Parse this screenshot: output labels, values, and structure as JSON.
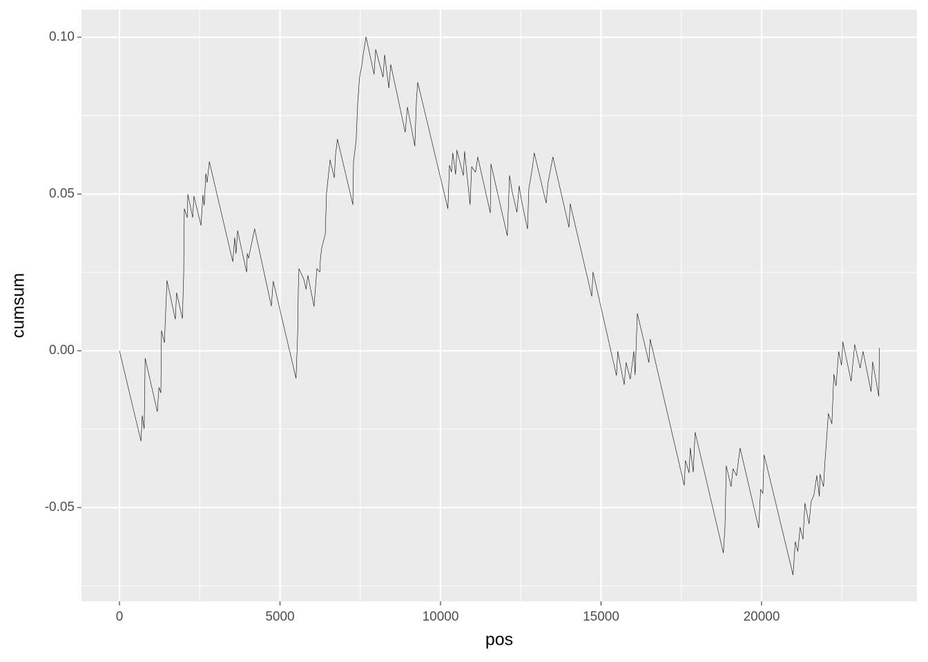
{
  "chart_data": {
    "type": "line",
    "x_label": "pos",
    "y_label": "cumsum",
    "x": [
      0,
      670,
      710,
      770,
      800,
      1180,
      1230,
      1290,
      1310,
      1400,
      1480,
      1740,
      1780,
      1960,
      2000,
      2020,
      2110,
      2130,
      2280,
      2320,
      2540,
      2600,
      2640,
      2690,
      2730,
      2800,
      3530,
      3590,
      3630,
      3680,
      3960,
      3980,
      4020,
      4210,
      4730,
      4790,
      5500,
      5550,
      5570,
      5590,
      5740,
      5810,
      5870,
      6060,
      6150,
      6240,
      6260,
      6300,
      6410,
      6450,
      6560,
      6690,
      6730,
      6790,
      7270,
      7290,
      7370,
      7420,
      7480,
      7550,
      7590,
      7680,
      7930,
      7980,
      8210,
      8260,
      8390,
      8450,
      8900,
      8970,
      9200,
      9250,
      9290,
      10230,
      10280,
      10340,
      10380,
      10470,
      10510,
      10710,
      10750,
      10920,
      10970,
      11090,
      11160,
      11550,
      11570,
      12080,
      12150,
      12230,
      12380,
      12450,
      12530,
      12710,
      12750,
      12860,
      12920,
      13290,
      13350,
      13500,
      14000,
      14040,
      14710,
      14750,
      15480,
      15520,
      15720,
      15780,
      15910,
      16020,
      16060,
      16130,
      16490,
      16530,
      17590,
      17630,
      17740,
      17780,
      17870,
      17930,
      18810,
      18860,
      18900,
      19050,
      19110,
      19220,
      19330,
      19910,
      19970,
      20040,
      20080,
      20980,
      21050,
      21130,
      21200,
      21290,
      21350,
      21480,
      21540,
      21630,
      21720,
      21800,
      21820,
      21930,
      21970,
      22020,
      22080,
      22190,
      22250,
      22320,
      22400,
      22490,
      22530,
      22790,
      22900,
      23070,
      23160,
      23410,
      23460,
      23650,
      23670
    ],
    "values": [
      0,
      -0.0288,
      -0.0207,
      -0.0249,
      -0.0024,
      -0.0194,
      -0.0117,
      -0.0134,
      0.0064,
      0.0026,
      0.0224,
      0.0101,
      0.0185,
      0.0103,
      0.024,
      0.0453,
      0.0425,
      0.0499,
      0.0425,
      0.0493,
      0.04,
      0.0497,
      0.0464,
      0.0565,
      0.0537,
      0.0603,
      0.0284,
      0.0361,
      0.031,
      0.0383,
      0.0251,
      0.031,
      0.0295,
      0.0389,
      0.0143,
      0.0222,
      -0.0088,
      0.0053,
      0.0191,
      0.0262,
      0.0229,
      0.0196,
      0.024,
      0.0141,
      0.0262,
      0.0251,
      0.0295,
      0.0328,
      0.0372,
      0.0504,
      0.0609,
      0.0552,
      0.0625,
      0.0675,
      0.0466,
      0.0603,
      0.0669,
      0.079,
      0.0873,
      0.0911,
      0.0944,
      0.1001,
      0.0882,
      0.0961,
      0.0873,
      0.0944,
      0.0838,
      0.0913,
      0.0697,
      0.0777,
      0.0653,
      0.0801,
      0.0856,
      0.0453,
      0.0592,
      0.057,
      0.0631,
      0.0563,
      0.064,
      0.0559,
      0.0636,
      0.0466,
      0.0587,
      0.057,
      0.0618,
      0.044,
      0.0596,
      0.0367,
      0.0559,
      0.0508,
      0.0442,
      0.0526,
      0.0475,
      0.0389,
      0.0515,
      0.0583,
      0.0631,
      0.0471,
      0.0537,
      0.0618,
      0.0394,
      0.0469,
      0.0174,
      0.0251,
      -0.0079,
      -0.0002,
      -0.0108,
      -0.0037,
      -0.009,
      -0.0002,
      -0.0077,
      0.0119,
      -0.0037,
      0.0037,
      -0.0429,
      -0.035,
      -0.0389,
      -0.031,
      -0.0387,
      -0.026,
      -0.0645,
      -0.0563,
      -0.0367,
      -0.0433,
      -0.0376,
      -0.0398,
      -0.031,
      -0.0565,
      -0.0442,
      -0.0455,
      -0.0332,
      -0.0715,
      -0.0609,
      -0.064,
      -0.0563,
      -0.0601,
      -0.0486,
      -0.0552,
      -0.0482,
      -0.046,
      -0.0398,
      -0.0464,
      -0.0394,
      -0.0433,
      -0.0359,
      -0.0288,
      -0.02,
      -0.0233,
      -0.0075,
      -0.0112,
      -0.0002,
      -0.0046,
      0.0029,
      -0.0097,
      0.002,
      -0.0055,
      -0.0002,
      -0.013,
      -0.0035,
      -0.0145,
      0.0009
    ],
    "color": "#000000",
    "xlim": [
      -1183,
      24839
    ],
    "ylim": [
      -0.0799,
      0.1088
    ],
    "xticks": [
      0,
      5000,
      10000,
      15000,
      20000
    ],
    "yticks": [
      {
        "value": -0.05,
        "label": "-0.05"
      },
      {
        "value": 0,
        "label": "0.00"
      },
      0.05,
      {
        "value": 0.1,
        "label": "0.10"
      }
    ],
    "x_minor_breaks": [
      2500,
      7500,
      12500,
      17500,
      22500
    ],
    "y_minor_breaks": [
      -0.075,
      -0.025,
      0.025,
      0.075
    ],
    "grid": true
  }
}
